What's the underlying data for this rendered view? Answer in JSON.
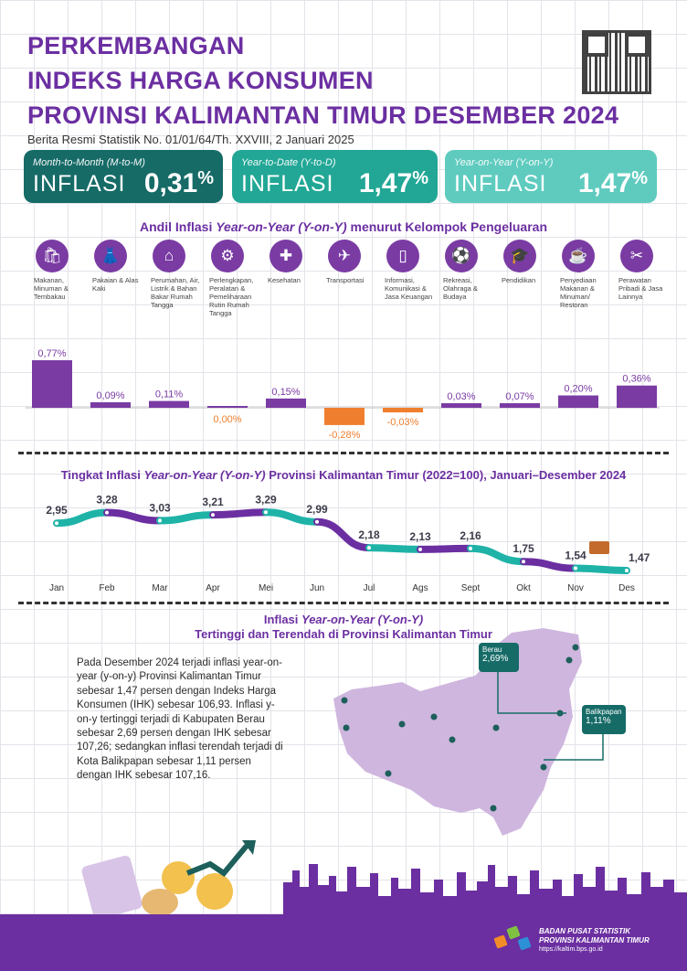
{
  "header": {
    "title_lines": [
      "PERKEMBANGAN",
      "INDEKS HARGA KONSUMEN",
      "PROVINSI KALIMANTAN TIMUR DESEMBER 2024"
    ],
    "subtitle": "Berita Resmi Statistik No. 01/01/64/Th. XXVIII, 2 Januari 2025"
  },
  "inflation_boxes": [
    {
      "label": "Month-to-Month (M-to-M)",
      "word": "INFLASI",
      "value": "0,31",
      "unit": "%"
    },
    {
      "label": "Year-to-Date (Y-to-D)",
      "word": "INFLASI",
      "value": "1,47",
      "unit": "%"
    },
    {
      "label": "Year-on-Year (Y-on-Y)",
      "word": "INFLASI",
      "value": "1,47",
      "unit": "%"
    }
  ],
  "andil_title": {
    "pre": "Andil Inflasi ",
    "ital": "Year-on-Year (Y-on-Y)",
    "post": " menurut Kelompok Pengeluaran"
  },
  "categories": [
    {
      "icon": "food-icon",
      "glyph": "🛍",
      "label": "Makanan, Minuman & Tembakau"
    },
    {
      "icon": "clothing-icon",
      "glyph": "👗",
      "label": "Pakaian & Alas Kaki"
    },
    {
      "icon": "house-icon",
      "glyph": "⌂",
      "label": "Perumahan, Air, Listrik & Bahan Bakar Rumah Tangga"
    },
    {
      "icon": "appliance-icon",
      "glyph": "⚙",
      "label": "Perlengkapan, Peralatan & Pemeliharaan Rutin Rumah Tangga"
    },
    {
      "icon": "health-icon",
      "glyph": "✚",
      "label": "Kesehatan"
    },
    {
      "icon": "plane-icon",
      "glyph": "✈",
      "label": "Transportasi"
    },
    {
      "icon": "phone-icon",
      "glyph": "▯",
      "label": "Informasi, Komunikasi & Jasa Keuangan"
    },
    {
      "icon": "recreation-icon",
      "glyph": "⚽",
      "label": "Rekreasi, Olahraga & Budaya"
    },
    {
      "icon": "education-icon",
      "glyph": "🎓",
      "label": "Pendidikan"
    },
    {
      "icon": "restaurant-icon",
      "glyph": "☕",
      "label": "Penyediaan Makanan & Minuman/ Restoran"
    },
    {
      "icon": "tools-icon",
      "glyph": "✂",
      "label": "Perawatan Pribadi & Jasa Lainnya"
    }
  ],
  "chart_data": [
    {
      "type": "bar",
      "title": "Andil Inflasi Year-on-Year (Y-on-Y) menurut Kelompok Pengeluaran",
      "categories": [
        "Makanan, Minuman & Tembakau",
        "Pakaian & Alas Kaki",
        "Perumahan, Air, Listrik & Bahan Bakar Rumah Tangga",
        "Perlengkapan, Peralatan & Pemeliharaan Rutin Rumah Tangga",
        "Kesehatan",
        "Transportasi",
        "Informasi, Komunikasi & Jasa Keuangan",
        "Rekreasi, Olahraga & Budaya",
        "Pendidikan",
        "Penyediaan Makanan & Minuman/ Restoran",
        "Perawatan Pribadi & Jasa Lainnya"
      ],
      "values": [
        0.77,
        0.09,
        0.11,
        0.0,
        0.15,
        -0.28,
        -0.03,
        0.03,
        0.07,
        0.2,
        0.36
      ],
      "labels": [
        "0,77%",
        "0,09%",
        "0,11%",
        "0,00%",
        "0,15%",
        "-0,28%",
        "-0,03%",
        "0,03%",
        "0,07%",
        "0,20%",
        "0,36%"
      ],
      "colors": {
        "positive": "#7a3ba3",
        "negative": "#ef7f2f"
      }
    },
    {
      "type": "line",
      "title": "Tingkat Inflasi Year-on-Year (Y-on-Y) Provinsi Kalimantan Timur (2022=100), Januari–Desember 2024",
      "x": [
        "Jan",
        "Feb",
        "Mar",
        "Apr",
        "Mei",
        "Jun",
        "Jul",
        "Ags",
        "Sept",
        "Okt",
        "Nov",
        "Des"
      ],
      "values": [
        2.95,
        3.28,
        3.03,
        3.21,
        3.29,
        2.99,
        2.18,
        2.13,
        2.16,
        1.75,
        1.54,
        1.47
      ],
      "labels": [
        "2,95",
        "3,28",
        "3,03",
        "3,21",
        "3,29",
        "2,99",
        "2,18",
        "2,13",
        "2,16",
        "1,75",
        "1,54",
        "1,47"
      ],
      "colors": {
        "a": "#1fb3a8",
        "b": "#6b2fa1"
      }
    }
  ],
  "line_title": {
    "pre": "Tingkat Inflasi ",
    "ital": "Year-on-Year (Y-on-Y)",
    "post": " Provinsi Kalimantan Timur (2022=100), Januari–Desember 2024"
  },
  "map_section": {
    "title_ital": "Year-on-Year (Y-on-Y)",
    "title_pre": "Inflasi ",
    "title_line2": "Tertinggi dan Terendah di Provinsi Kalimantan Timur",
    "paragraph": "Pada Desember 2024 terjadi inflasi year-on-year (y-on-y) Provinsi Kalimantan Timur sebesar 1,47 persen dengan Indeks Harga Konsumen (IHK) sebesar 106,93. Inflasi y-on-y tertinggi terjadi di Kabupaten Berau sebesar 2,69 persen dengan IHK sebesar 107,26; sedangkan inflasi terendah terjadi di Kota Balikpapan sebesar 1,11 persen dengan IHK sebesar 107,16.",
    "callouts": [
      {
        "name": "Berau",
        "value": "2,69%"
      },
      {
        "name": "Balikpapan",
        "value": "1,11%"
      }
    ]
  },
  "footer": {
    "org_line1": "BADAN PUSAT STATISTIK",
    "org_line2": "PROVINSI KALIMANTAN TIMUR",
    "url": "https://kaltim.bps.go.id"
  }
}
